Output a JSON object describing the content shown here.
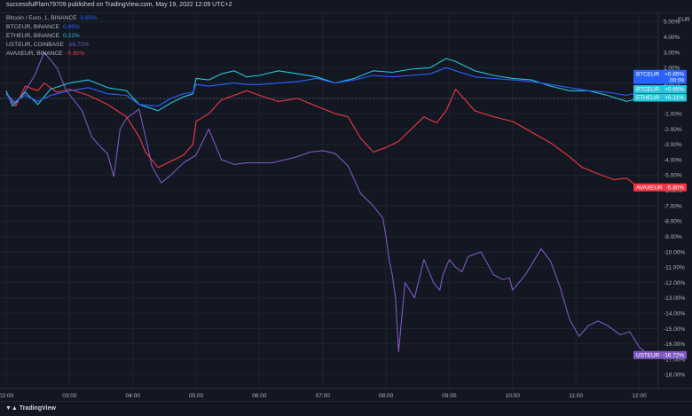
{
  "header": {
    "published": "successfulFlam79709 published on TradingView.com, May 19, 2022 12:09 UTC+2"
  },
  "legend": [
    {
      "name": "Bitcoin / Euro, 1, BINANCE",
      "value": "0.65%",
      "color": "#2962ff"
    },
    {
      "name": "BTCEUR, BINANCE",
      "value": "0.65%",
      "color": "#2962ff"
    },
    {
      "name": "ETHEUR, BINANCE",
      "value": "0.21%",
      "color": "#26c6da"
    },
    {
      "name": "USTEUR, COINBASE",
      "value": "-16.72%",
      "color": "#7e57c2"
    },
    {
      "name": "AVAXEUR, BINANCE",
      "value": "-5.80%",
      "color": "#f23645"
    }
  ],
  "price_tags": [
    {
      "label": "BTCEUR",
      "value": "+0.65%",
      "sub": "00:09",
      "color": "#2962ff"
    },
    {
      "label": "BTCEUR",
      "value": "+0.65%",
      "color": "#26c6da"
    },
    {
      "label": "ETHEUR",
      "value": "+0.21%",
      "color": "#26c6da"
    },
    {
      "label": "AVAXEUR",
      "value": "-5.80%",
      "color": "#f23645"
    },
    {
      "label": "USTEUR",
      "value": "-16.72%",
      "color": "#7e57c2"
    }
  ],
  "footer": {
    "logo_text": "TradingView"
  },
  "chart_data": {
    "type": "line",
    "y_axis_unit": "EUR",
    "yticks": [
      "5.00%",
      "4.00%",
      "3.00%",
      "2.00%",
      "1.00%",
      "0.00%",
      "-1.00%",
      "-2.00%",
      "-3.00%",
      "-4.00%",
      "-5.00%",
      "-6.00%",
      "-7.00%",
      "-8.00%",
      "-9.00%",
      "-10.00%",
      "-11.00%",
      "-12.00%",
      "-13.00%",
      "-14.00%",
      "-15.00%",
      "-16.00%",
      "-17.00%",
      "-18.00%"
    ],
    "xticks": [
      "02:00",
      "03:00",
      "04:00",
      "05:00",
      "06:00",
      "07:00",
      "08:00",
      "09:00",
      "10:00",
      "11:00",
      "12:00"
    ],
    "ylim": [
      -18.9,
      5.6
    ],
    "xlim": [
      2.0,
      12.4
    ],
    "grid": true,
    "series": [
      {
        "name": "BTCEUR",
        "color": "#2962ff",
        "x": [
          2.0,
          2.1,
          2.3,
          2.5,
          2.7,
          3.0,
          3.3,
          3.6,
          3.9,
          4.1,
          4.4,
          4.6,
          4.8,
          4.95,
          5.0,
          5.2,
          5.4,
          5.6,
          5.8,
          6.0,
          6.3,
          6.6,
          6.9,
          7.2,
          7.5,
          7.8,
          8.1,
          8.4,
          8.7,
          8.95,
          9.1,
          9.4,
          9.7,
          10.0,
          10.3,
          10.6,
          10.9,
          11.2,
          11.5,
          11.8,
          12.0,
          12.15
        ],
        "y": [
          0.3,
          -0.3,
          0.2,
          -0.2,
          0.2,
          0.5,
          0.7,
          0.3,
          0.2,
          -0.4,
          -0.5,
          0.0,
          0.3,
          0.4,
          0.9,
          0.8,
          0.9,
          1.0,
          0.9,
          0.9,
          1.0,
          1.1,
          1.3,
          1.0,
          1.2,
          1.5,
          1.4,
          1.5,
          1.6,
          2.0,
          1.8,
          1.4,
          1.3,
          1.2,
          1.1,
          0.9,
          0.7,
          0.5,
          0.4,
          0.2,
          0.4,
          0.65
        ]
      },
      {
        "name": "ETHEUR",
        "color": "#26c6da",
        "x": [
          2.0,
          2.1,
          2.3,
          2.5,
          2.7,
          3.0,
          3.3,
          3.6,
          3.9,
          4.1,
          4.4,
          4.6,
          4.8,
          4.95,
          5.0,
          5.2,
          5.4,
          5.6,
          5.8,
          6.0,
          6.3,
          6.6,
          6.9,
          7.2,
          7.5,
          7.8,
          8.1,
          8.4,
          8.7,
          8.95,
          9.1,
          9.4,
          9.7,
          10.0,
          10.3,
          10.6,
          10.9,
          11.2,
          11.5,
          11.8,
          12.0,
          12.15
        ],
        "y": [
          0.5,
          -0.5,
          0.4,
          -0.4,
          0.6,
          1.0,
          1.2,
          0.7,
          0.5,
          -0.4,
          -0.8,
          -0.3,
          0.1,
          0.3,
          1.3,
          1.2,
          1.6,
          1.8,
          1.4,
          1.5,
          1.8,
          1.6,
          1.4,
          1.0,
          1.3,
          1.8,
          1.7,
          1.9,
          2.0,
          2.6,
          2.4,
          1.8,
          1.5,
          1.3,
          1.2,
          0.8,
          0.5,
          0.5,
          0.2,
          -0.2,
          0.0,
          0.21
        ]
      },
      {
        "name": "AVAXEUR",
        "color": "#f23645",
        "x": [
          2.0,
          2.15,
          2.3,
          2.5,
          2.6,
          2.8,
          3.0,
          3.3,
          3.6,
          3.9,
          4.1,
          4.2,
          4.4,
          4.6,
          4.8,
          4.95,
          5.0,
          5.2,
          5.4,
          5.6,
          5.8,
          6.0,
          6.3,
          6.6,
          6.9,
          7.2,
          7.4,
          7.6,
          7.8,
          8.0,
          8.2,
          8.4,
          8.6,
          8.8,
          8.95,
          9.1,
          9.4,
          9.7,
          10.0,
          10.3,
          10.6,
          10.9,
          11.1,
          11.4,
          11.6,
          11.8,
          12.0,
          12.15
        ],
        "y": [
          0.3,
          -0.5,
          0.8,
          0.5,
          1.0,
          0.4,
          0.6,
          0.2,
          -0.4,
          -1.2,
          -2.5,
          -3.5,
          -4.5,
          -4.1,
          -3.7,
          -3.0,
          -1.5,
          -1.0,
          -0.1,
          0.2,
          0.5,
          0.2,
          -0.2,
          0.0,
          -0.5,
          -1.0,
          -1.2,
          -2.6,
          -3.5,
          -3.2,
          -2.8,
          -2.0,
          -1.2,
          -1.6,
          -0.8,
          0.6,
          -0.8,
          -1.2,
          -1.5,
          -2.2,
          -2.9,
          -3.8,
          -4.5,
          -5.0,
          -5.3,
          -5.2,
          -5.8,
          -5.8
        ]
      },
      {
        "name": "USTEUR",
        "color": "#7e57c2",
        "x": [
          2.0,
          2.15,
          2.3,
          2.45,
          2.6,
          2.8,
          2.95,
          3.2,
          3.35,
          3.5,
          3.6,
          3.7,
          3.8,
          3.9,
          4.0,
          4.1,
          4.2,
          4.3,
          4.45,
          4.6,
          4.8,
          5.0,
          5.2,
          5.4,
          5.6,
          5.8,
          6.0,
          6.2,
          6.4,
          6.6,
          6.8,
          7.0,
          7.2,
          7.4,
          7.6,
          7.8,
          7.95,
          8.0,
          8.05,
          8.1,
          8.15,
          8.2,
          8.3,
          8.45,
          8.6,
          8.75,
          8.85,
          8.9,
          9.0,
          9.1,
          9.2,
          9.3,
          9.5,
          9.7,
          9.85,
          9.95,
          10.0,
          10.2,
          10.35,
          10.45,
          10.6,
          10.75,
          10.9,
          11.05,
          11.2,
          11.35,
          11.5,
          11.7,
          11.85,
          12.0,
          12.15
        ],
        "y": [
          0.3,
          -0.3,
          0.5,
          1.5,
          3.0,
          2.0,
          0.5,
          -0.8,
          -2.5,
          -3.2,
          -3.6,
          -5.1,
          -2.0,
          -1.3,
          -1.0,
          -0.7,
          -2.5,
          -4.4,
          -5.5,
          -5.0,
          -4.2,
          -3.7,
          -2.0,
          -4.0,
          -4.3,
          -4.2,
          -4.2,
          -4.2,
          -4.0,
          -3.8,
          -3.5,
          -3.4,
          -3.6,
          -4.4,
          -6.2,
          -7.0,
          -7.8,
          -9.0,
          -10.5,
          -11.5,
          -13.0,
          -16.5,
          -12.0,
          -13.0,
          -10.5,
          -12.0,
          -12.5,
          -11.5,
          -10.5,
          -11.0,
          -11.3,
          -10.3,
          -10.0,
          -11.5,
          -11.8,
          -11.7,
          -12.5,
          -11.5,
          -10.5,
          -9.8,
          -10.6,
          -12.3,
          -14.4,
          -15.5,
          -14.8,
          -14.5,
          -14.8,
          -15.4,
          -15.2,
          -16.2,
          -16.72
        ]
      }
    ]
  }
}
